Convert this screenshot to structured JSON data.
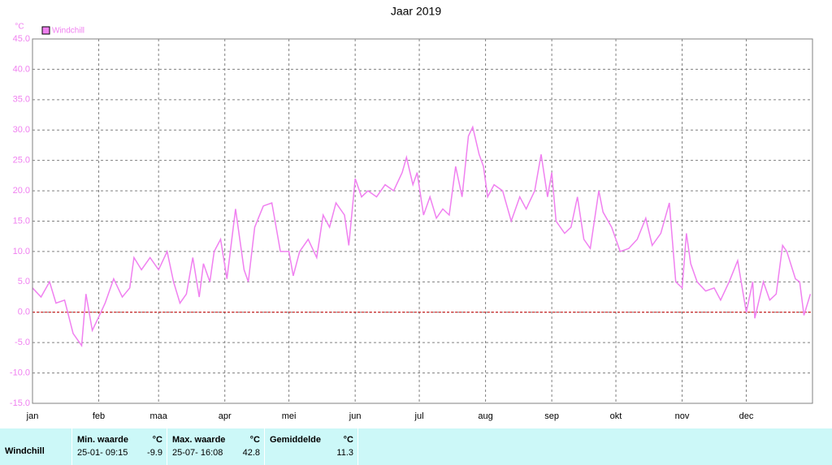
{
  "chart_data": {
    "type": "line",
    "title": "Jaar 2019",
    "y_unit": "°C",
    "x": [
      0,
      4,
      8,
      11,
      15,
      19,
      23,
      25,
      28,
      32,
      34,
      38,
      42,
      45.5,
      47.5,
      51,
      55,
      59,
      63,
      66,
      69,
      72,
      75,
      78,
      80,
      83,
      85,
      88,
      91,
      95,
      99,
      101,
      104,
      108,
      112,
      116,
      120,
      122,
      125,
      129,
      133,
      136,
      139,
      142,
      146,
      148,
      151,
      154,
      157,
      161,
      165,
      169,
      173,
      175,
      178,
      180,
      183,
      186,
      189,
      192,
      195,
      198,
      201,
      204,
      206,
      209,
      211,
      213,
      216,
      220,
      224,
      228,
      231,
      235,
      238,
      241,
      243,
      245,
      249,
      252,
      255,
      258,
      261,
      265,
      267,
      271,
      275,
      279,
      283,
      287,
      290,
      294,
      298,
      301,
      304,
      306,
      308,
      311,
      315,
      319,
      322,
      326,
      330,
      334,
      337,
      338,
      342,
      345,
      348,
      351,
      353,
      357,
      359,
      361,
      364
    ],
    "series": [
      {
        "name": "Windchill",
        "color": "#f080f0",
        "values": [
          4,
          2.5,
          5,
          1.5,
          2,
          -3.5,
          -5.5,
          3,
          -3,
          0,
          1.5,
          5.5,
          2.5,
          4,
          9,
          7,
          9,
          7,
          10,
          5,
          1.5,
          3,
          9,
          2.5,
          8,
          5,
          10,
          12,
          5.5,
          17,
          7,
          5,
          14,
          17.5,
          18,
          10,
          10,
          6,
          10,
          12,
          9,
          16,
          14,
          18,
          16,
          11,
          22,
          19,
          20,
          19,
          21,
          20,
          23,
          25.5,
          21,
          23,
          16,
          19,
          15.5,
          17,
          16,
          24,
          19,
          29,
          30.5,
          26,
          24,
          19,
          21,
          20,
          15,
          19,
          17,
          20,
          26,
          19,
          23,
          15,
          13,
          14,
          19,
          12,
          10.5,
          20,
          16.5,
          14,
          10,
          10.5,
          12,
          15.5,
          11,
          13,
          18,
          5,
          4,
          13,
          8,
          5,
          3.5,
          4,
          2,
          5,
          8.5,
          0,
          5,
          -1,
          5,
          2,
          3,
          11,
          10,
          5.5,
          5,
          -0.5,
          3
        ]
      }
    ],
    "xlim": [
      0,
      365
    ],
    "xticks": [
      {
        "value": 0,
        "label": "jan"
      },
      {
        "value": 31,
        "label": "feb"
      },
      {
        "value": 59,
        "label": "maa"
      },
      {
        "value": 90,
        "label": "apr"
      },
      {
        "value": 120,
        "label": "mei"
      },
      {
        "value": 151,
        "label": "jun"
      },
      {
        "value": 181,
        "label": "jul"
      },
      {
        "value": 212,
        "label": "aug"
      },
      {
        "value": 243,
        "label": "sep"
      },
      {
        "value": 273,
        "label": "okt"
      },
      {
        "value": 304,
        "label": "nov"
      },
      {
        "value": 334,
        "label": "dec"
      }
    ],
    "ylim": [
      -15,
      45
    ],
    "yticks": [
      {
        "value": -15,
        "label": "-15.0"
      },
      {
        "value": -10,
        "label": "-10.0"
      },
      {
        "value": -5,
        "label": "-5.0"
      },
      {
        "value": 0,
        "label": "0.0"
      },
      {
        "value": 5,
        "label": "5.0"
      },
      {
        "value": 10,
        "label": "10.0"
      },
      {
        "value": 15,
        "label": "15.0"
      },
      {
        "value": 20,
        "label": "20.0"
      },
      {
        "value": 25,
        "label": "25.0"
      },
      {
        "value": 30,
        "label": "30.0"
      },
      {
        "value": 35,
        "label": "35.0"
      },
      {
        "value": 40,
        "label": "40.0"
      },
      {
        "value": 45,
        "label": "45.0"
      }
    ],
    "grid": true,
    "reference_line": {
      "value": 0,
      "color": "#cc0000"
    }
  },
  "table": {
    "row_label": "Windchill",
    "columns": [
      {
        "header": "Min. waarde",
        "unit": "°C",
        "date": "25-01- 09:15",
        "value": "-9.9"
      },
      {
        "header": "Max. waarde",
        "unit": "°C",
        "date": "25-07- 16:08",
        "value": "42.8"
      },
      {
        "header": "Gemiddelde",
        "unit": "°C",
        "value": "11.3"
      }
    ]
  }
}
